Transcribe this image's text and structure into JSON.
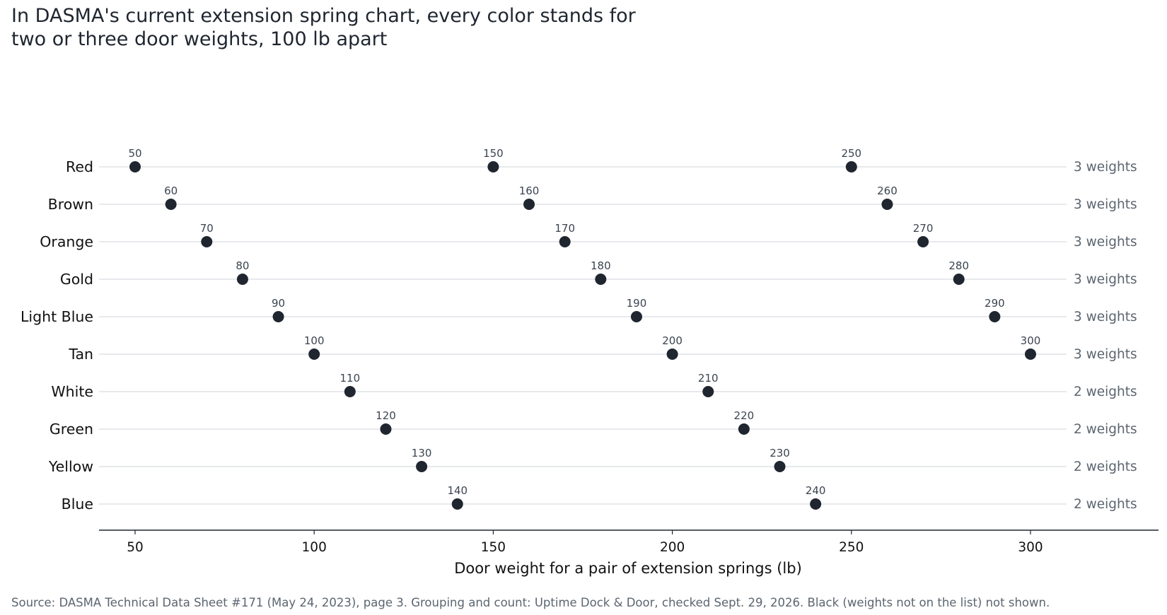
{
  "title": {
    "line1": "In DASMA's current extension spring chart, every color stands for",
    "line2": "two or three door weights, 100 lb apart"
  },
  "source": "Source: DASMA Technical Data Sheet #171 (May 24, 2023), page 3. Grouping and count: Uptime Dock & Door, checked Sept. 29, 2026. Black (weights not on the list) not shown.",
  "colors": {
    "dot": "#1f2630",
    "gridline": "#dfe2e6",
    "axis": "#1f2630",
    "count_text": "#5b6570",
    "value_label": "#3b4450",
    "category_text": "#111111"
  },
  "chart_data": {
    "type": "scatter",
    "title": "In DASMA's current extension spring chart, every color stands for two or three door weights, 100 lb apart",
    "xlabel": "Door weight for a pair of extension springs (lb)",
    "ylabel": "",
    "xlim": [
      40,
      312
    ],
    "xticks": [
      50,
      100,
      150,
      200,
      250,
      300
    ],
    "grid": "horizontal lines per category",
    "legend": "none",
    "categories": [
      "Red",
      "Brown",
      "Orange",
      "Gold",
      "Light Blue",
      "Tan",
      "White",
      "Green",
      "Yellow",
      "Blue"
    ],
    "series": [
      {
        "category": "Red",
        "values": [
          50,
          150,
          250
        ],
        "count_label": "3 weights"
      },
      {
        "category": "Brown",
        "values": [
          60,
          160,
          260
        ],
        "count_label": "3 weights"
      },
      {
        "category": "Orange",
        "values": [
          70,
          170,
          270
        ],
        "count_label": "3 weights"
      },
      {
        "category": "Gold",
        "values": [
          80,
          180,
          280
        ],
        "count_label": "3 weights"
      },
      {
        "category": "Light Blue",
        "values": [
          90,
          190,
          290
        ],
        "count_label": "3 weights"
      },
      {
        "category": "Tan",
        "values": [
          100,
          200,
          300
        ],
        "count_label": "3 weights"
      },
      {
        "category": "White",
        "values": [
          110,
          210
        ],
        "count_label": "2 weights"
      },
      {
        "category": "Green",
        "values": [
          120,
          220
        ],
        "count_label": "2 weights"
      },
      {
        "category": "Yellow",
        "values": [
          130,
          230
        ],
        "count_label": "2 weights"
      },
      {
        "category": "Blue",
        "values": [
          140,
          240
        ],
        "count_label": "2 weights"
      }
    ]
  }
}
